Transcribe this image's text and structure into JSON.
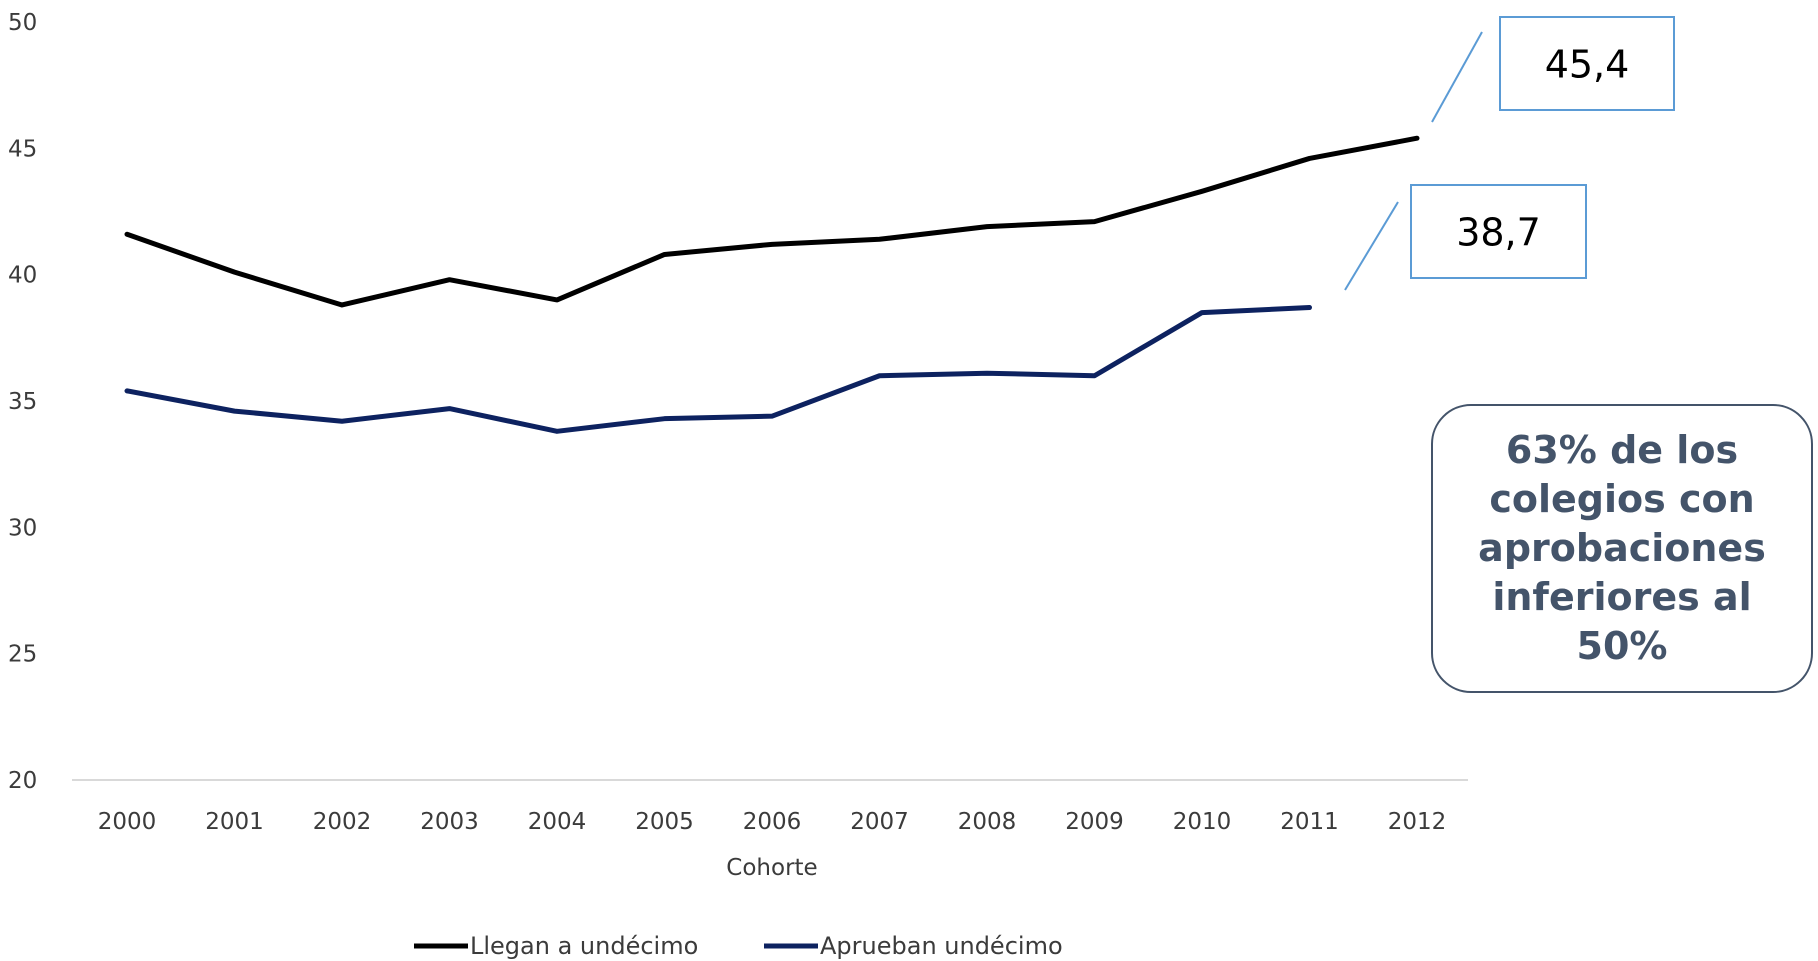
{
  "chart_data": {
    "type": "line",
    "categories": [
      "2000",
      "2001",
      "2002",
      "2003",
      "2004",
      "2005",
      "2006",
      "2007",
      "2008",
      "2009",
      "2010",
      "2011",
      "2012"
    ],
    "xlabel": "Cohorte",
    "ylabel": "",
    "ylim": [
      20,
      50
    ],
    "yticks": [
      20,
      25,
      30,
      35,
      40,
      45,
      50
    ],
    "grid": false,
    "legend_position": "bottom",
    "series": [
      {
        "name": "Llegan a undécimo",
        "color": "#000000",
        "values": [
          41.6,
          40.1,
          38.8,
          39.8,
          39.0,
          40.8,
          41.2,
          41.4,
          41.9,
          42.1,
          43.3,
          44.6,
          45.4
        ]
      },
      {
        "name": "Aprueban undécimo",
        "color": "#0d2260",
        "values": [
          35.4,
          34.6,
          34.2,
          34.7,
          33.8,
          34.3,
          34.4,
          36.0,
          36.1,
          36.0,
          38.5,
          38.7,
          null
        ]
      }
    ],
    "annotations": [
      {
        "text": "45,4",
        "series": 0,
        "category": "2012"
      },
      {
        "text": "38,7",
        "series": 1,
        "category": "2011"
      }
    ],
    "note": "63% de los colegios con aprobaciones inferiores al 50%"
  },
  "colors": {
    "callout_border": "#5b9bd5",
    "note_border": "#44546a",
    "note_text": "#44546a"
  }
}
